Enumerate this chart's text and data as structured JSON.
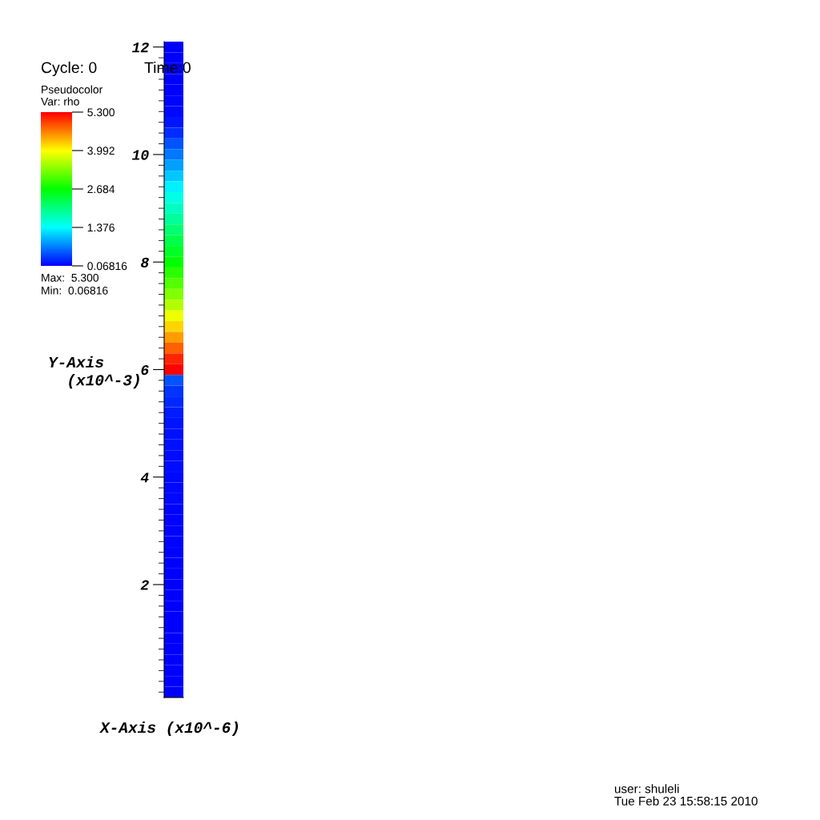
{
  "chart_data": {
    "type": "heatmap",
    "xlabel": "X-Axis (x10^-6)",
    "ylabel": "Y-Axis\n  (x10^-3)",
    "clabel": "Var: rho",
    "categories": [
      null
    ],
    "y_categories": [
      "12",
      null,
      null,
      null,
      null,
      null,
      null,
      null,
      null,
      null,
      "10",
      null,
      null,
      null,
      null,
      null,
      null,
      null,
      null,
      null,
      "8",
      null,
      null,
      null,
      null,
      null,
      null,
      null,
      null,
      null,
      "6",
      null,
      null,
      null,
      null,
      null,
      null,
      null,
      null,
      null,
      "4",
      null,
      null,
      null,
      null,
      null,
      null,
      null,
      null,
      null,
      "2",
      null,
      null,
      null,
      null,
      null,
      null,
      null,
      null,
      null,
      null
    ],
    "cells": [
      [
        0.07
      ],
      [
        0.07
      ],
      [
        0.07
      ],
      [
        0.07
      ],
      [
        0.08
      ],
      [
        0.09
      ],
      [
        0.12
      ],
      [
        0.18
      ],
      [
        0.3
      ],
      [
        0.5
      ],
      [
        0.7
      ],
      [
        0.9
      ],
      [
        1.1
      ],
      [
        1.3
      ],
      [
        1.5
      ],
      [
        1.7
      ],
      [
        1.9
      ],
      [
        2.1
      ],
      [
        2.3
      ],
      [
        2.5
      ],
      [
        2.7
      ],
      [
        2.9
      ],
      [
        3.1
      ],
      [
        3.35
      ],
      [
        3.6
      ],
      [
        3.9
      ],
      [
        4.2
      ],
      [
        4.5
      ],
      [
        4.8
      ],
      [
        5.1
      ],
      [
        5.3
      ],
      [
        0.5
      ],
      [
        0.35
      ],
      [
        0.28
      ],
      [
        0.22
      ],
      [
        0.18
      ],
      [
        0.16
      ],
      [
        0.15
      ],
      [
        0.14
      ],
      [
        0.13
      ],
      [
        0.12
      ],
      [
        0.11
      ],
      [
        0.11
      ],
      [
        0.1
      ],
      [
        0.1
      ],
      [
        0.09
      ],
      [
        0.09
      ],
      [
        0.09
      ],
      [
        0.08
      ],
      [
        0.08
      ],
      [
        0.08
      ],
      [
        0.08
      ],
      [
        0.08
      ],
      [
        0.07
      ],
      [
        0.07
      ],
      [
        0.07
      ],
      [
        0.07
      ],
      [
        0.07
      ],
      [
        0.07
      ],
      [
        0.07
      ],
      [
        0.07
      ]
    ],
    "clim": [
      0.06816,
      5.3
    ],
    "cticks": [
      0.06816,
      1.376,
      2.684,
      3.992,
      {
        "value": 5.3,
        "label": "5.300"
      }
    ],
    "annotations": [
      "Cycle: 0",
      "Time:0",
      "Pseudocolor",
      "Max:  5.300",
      "Min:  0.06816",
      "user: shuleli\nTue Feb 23 15:58:15 2010"
    ]
  }
}
